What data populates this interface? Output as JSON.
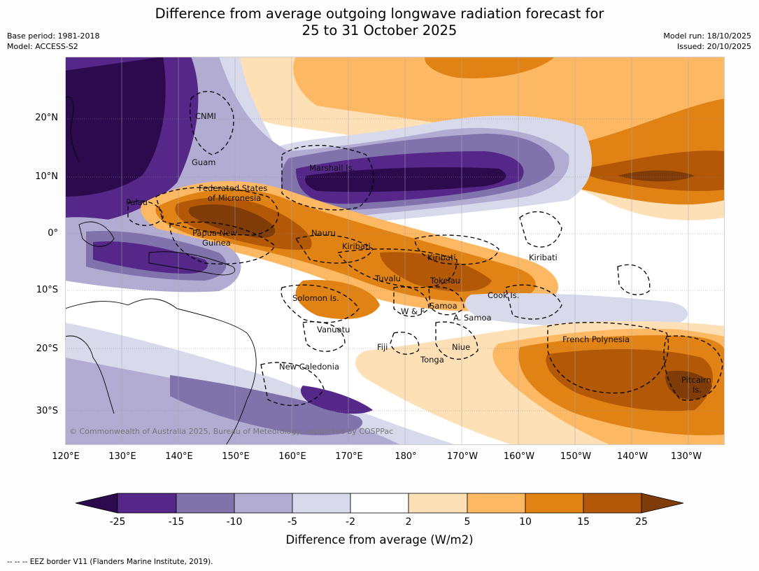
{
  "header": {
    "title_line1": "Difference from average outgoing longwave radiation forecast for",
    "title_line2": "25 to 31 October 2025",
    "base_period": "Base period: 1981-2018",
    "model": "Model: ACCESS-S2",
    "model_run": "Model run: 18/10/2025",
    "issued": "Issued: 20/10/2025"
  },
  "axes": {
    "lat_labels": [
      "20°N",
      "10°N",
      "0°",
      "10°S",
      "20°S",
      "30°S"
    ],
    "lon_labels": [
      "120°E",
      "130°E",
      "140°E",
      "150°E",
      "160°E",
      "170°E",
      "180°",
      "170°W",
      "160°W",
      "150°W",
      "140°W",
      "130°W"
    ]
  },
  "places": [
    "CNMI",
    "Guam",
    "Marshall Is.",
    "Federated States",
    "of Micronesia",
    "Palau",
    "Papua New",
    "Guinea",
    "Nauru",
    "Kiribati",
    "Kiribati",
    "Kiribati",
    "Tuvalu",
    "Tokelau",
    "Cook Is.",
    "Solomon Is.",
    "W & F",
    "Samoa",
    "A. Samoa",
    "Vanuatu",
    "Fiji",
    "Niue",
    "Tonga",
    "French Polynesia",
    "New Caledonia",
    "Pitcairn",
    "Is."
  ],
  "copyright": "© Commonwealth of Australia 2025, Bureau of Meteorology, supported by COSPPac",
  "colorbar": {
    "colors": [
      "#2d0a4e",
      "#542788",
      "#8073ac",
      "#b2abd2",
      "#d8daeb",
      "#ffffff",
      "#fee0b6",
      "#fdb863",
      "#e08214",
      "#b35806",
      "#7f3b08"
    ],
    "ticks": [
      "-25",
      "-15",
      "-10",
      "-5",
      "-2",
      "2",
      "5",
      "10",
      "15",
      "25"
    ],
    "label": "Difference from average (W/m2)"
  },
  "footer": "--  --  -- EEZ border V11 (Flanders Marine Institute, 2019)."
}
